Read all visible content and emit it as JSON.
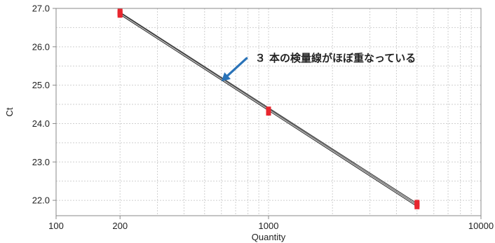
{
  "chart_data": {
    "type": "scatter",
    "xlabel": "Quantity",
    "ylabel": "Ct",
    "xscale": "log",
    "xlim": [
      100,
      10000
    ],
    "ylim": [
      21.6,
      27.0
    ],
    "x_ticks": [
      100,
      200,
      1000,
      10000
    ],
    "x_tick_labels": [
      "100",
      "200",
      "1000",
      "10000"
    ],
    "y_ticks": [
      22.0,
      23.0,
      24.0,
      25.0,
      26.0,
      27.0
    ],
    "y_tick_labels": [
      "22.0",
      "23.0",
      "24.0",
      "25.0",
      "26.0",
      "27.0"
    ],
    "grid": true,
    "points": [
      {
        "x": 200,
        "y": 26.88
      },
      {
        "x": 200,
        "y": 26.84
      },
      {
        "x": 200,
        "y": 26.91
      },
      {
        "x": 1000,
        "y": 24.33
      },
      {
        "x": 1000,
        "y": 24.29
      },
      {
        "x": 1000,
        "y": 24.36
      },
      {
        "x": 5000,
        "y": 21.9
      },
      {
        "x": 5000,
        "y": 21.85
      },
      {
        "x": 5000,
        "y": 21.93
      }
    ],
    "standard_curves": [
      {
        "x": [
          200,
          5000
        ],
        "y": [
          26.88,
          21.88
        ]
      },
      {
        "x": [
          200,
          5000
        ],
        "y": [
          26.84,
          21.84
        ]
      },
      {
        "x": [
          200,
          5000
        ],
        "y": [
          26.9,
          21.92
        ]
      }
    ],
    "annotation": {
      "text": "３ 本の検量線がほぼ重なっている",
      "points_to": {
        "x": 600,
        "y": 25.1
      }
    },
    "colors": {
      "marker": "#e8262e",
      "line": "#333333",
      "line_highlight": "#bbbbbb",
      "grid": "#cfcfcf",
      "axis": "#888888",
      "arrow": "#2a73b8"
    }
  }
}
